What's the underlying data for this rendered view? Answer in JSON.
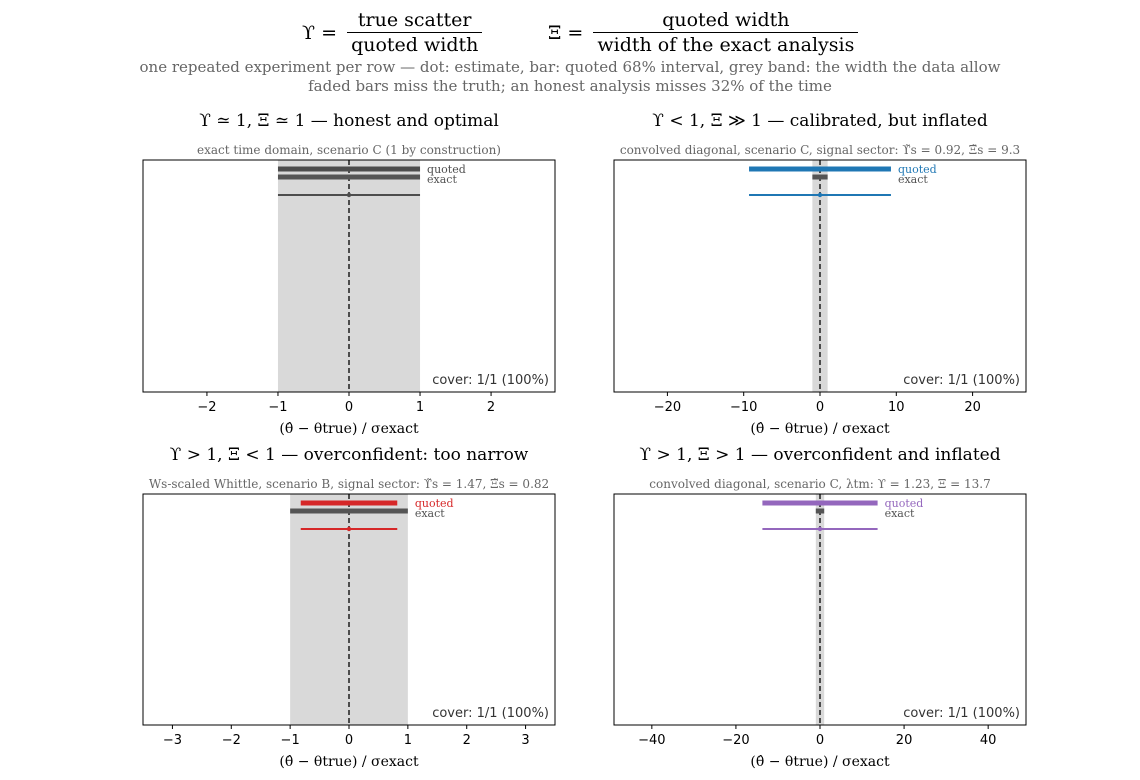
{
  "header": {
    "eq1": {
      "lhs": "ϒ =",
      "num": "true scatter",
      "den": "quoted width"
    },
    "eq2": {
      "lhs": "Ξ =",
      "num": "quoted width",
      "den": "width of the exact analysis"
    },
    "caption_line1": "one repeated experiment per row — dot: estimate, bar: quoted 68% interval, grey band: the width the data allow",
    "caption_line2": "faded bars miss the truth; an honest analysis misses 32% of the time"
  },
  "chart_data": [
    {
      "type": "interval",
      "title": "ϒ ≃ 1,   Ξ ≃ 1 — honest and optimal",
      "subtitle": "exact time domain, scenario C  (1 by construction)",
      "xlabel": "(θ̂ − θtrue) / σexact",
      "xlim": [
        -2.9,
        2.9
      ],
      "xticks": [
        -2,
        -1,
        0,
        1,
        2
      ],
      "grey_band": [
        -1,
        1
      ],
      "quoted_bar": [
        -1,
        1
      ],
      "exact_bar": [
        -1,
        1
      ],
      "legend_quoted": "quoted",
      "legend_exact": "exact",
      "rows": [
        {
          "estimate": 0.0,
          "low": -1.0,
          "high": 1.0
        }
      ],
      "color": "#4d4d4d",
      "cover": "cover: 1/1  (100%)"
    },
    {
      "type": "interval",
      "title": "ϒ < 1,   Ξ ≫ 1 — calibrated, but inflated",
      "subtitle": "convolved diagonal, scenario C, signal sector:  ϒ̃s = 0.92, Ξ̃s = 9.3",
      "xlabel": "(θ̂ − θtrue) / σexact",
      "xlim": [
        -27,
        27
      ],
      "xticks": [
        -20,
        -10,
        0,
        10,
        20
      ],
      "grey_band": [
        -1,
        1
      ],
      "quoted_bar": [
        -9.3,
        9.3
      ],
      "exact_bar": [
        -1,
        1
      ],
      "legend_quoted": "quoted",
      "legend_exact": "exact",
      "rows": [
        {
          "estimate": 0.0,
          "low": -9.3,
          "high": 9.3
        }
      ],
      "color": "#1f77b4",
      "cover": "cover: 1/1  (100%)"
    },
    {
      "type": "interval",
      "title": "ϒ > 1,   Ξ < 1 — overconfident: too narrow",
      "subtitle": "Ws-scaled Whittle, scenario B, signal sector:  ϒ̃s = 1.47, Ξ̃s = 0.82",
      "xlabel": "(θ̂ − θtrue) / σexact",
      "xlim": [
        -3.5,
        3.5
      ],
      "xticks": [
        -3,
        -2,
        -1,
        0,
        1,
        2,
        3
      ],
      "grey_band": [
        -1,
        1
      ],
      "quoted_bar": [
        -0.82,
        0.82
      ],
      "exact_bar": [
        -1,
        1
      ],
      "legend_quoted": "quoted",
      "legend_exact": "exact",
      "rows": [
        {
          "estimate": 0.0,
          "low": -0.82,
          "high": 0.82
        }
      ],
      "color": "#d62728",
      "cover": "cover: 1/1  (100%)"
    },
    {
      "type": "interval",
      "title": "ϒ > 1,   Ξ > 1 — overconfident and inflated",
      "subtitle": "convolved diagonal, scenario C, λtm:  ϒ = 1.23, Ξ = 13.7",
      "xlabel": "(θ̂ − θtrue) / σexact",
      "xlim": [
        -49,
        49
      ],
      "xticks": [
        -40,
        -20,
        0,
        20,
        40
      ],
      "grey_band": [
        -1,
        1
      ],
      "quoted_bar": [
        -13.7,
        13.7
      ],
      "exact_bar": [
        -1,
        1
      ],
      "legend_quoted": "quoted",
      "legend_exact": "exact",
      "rows": [
        {
          "estimate": 0.0,
          "low": -13.7,
          "high": 13.7
        }
      ],
      "color": "#9467bd",
      "cover": "cover: 1/1  (100%)"
    }
  ]
}
